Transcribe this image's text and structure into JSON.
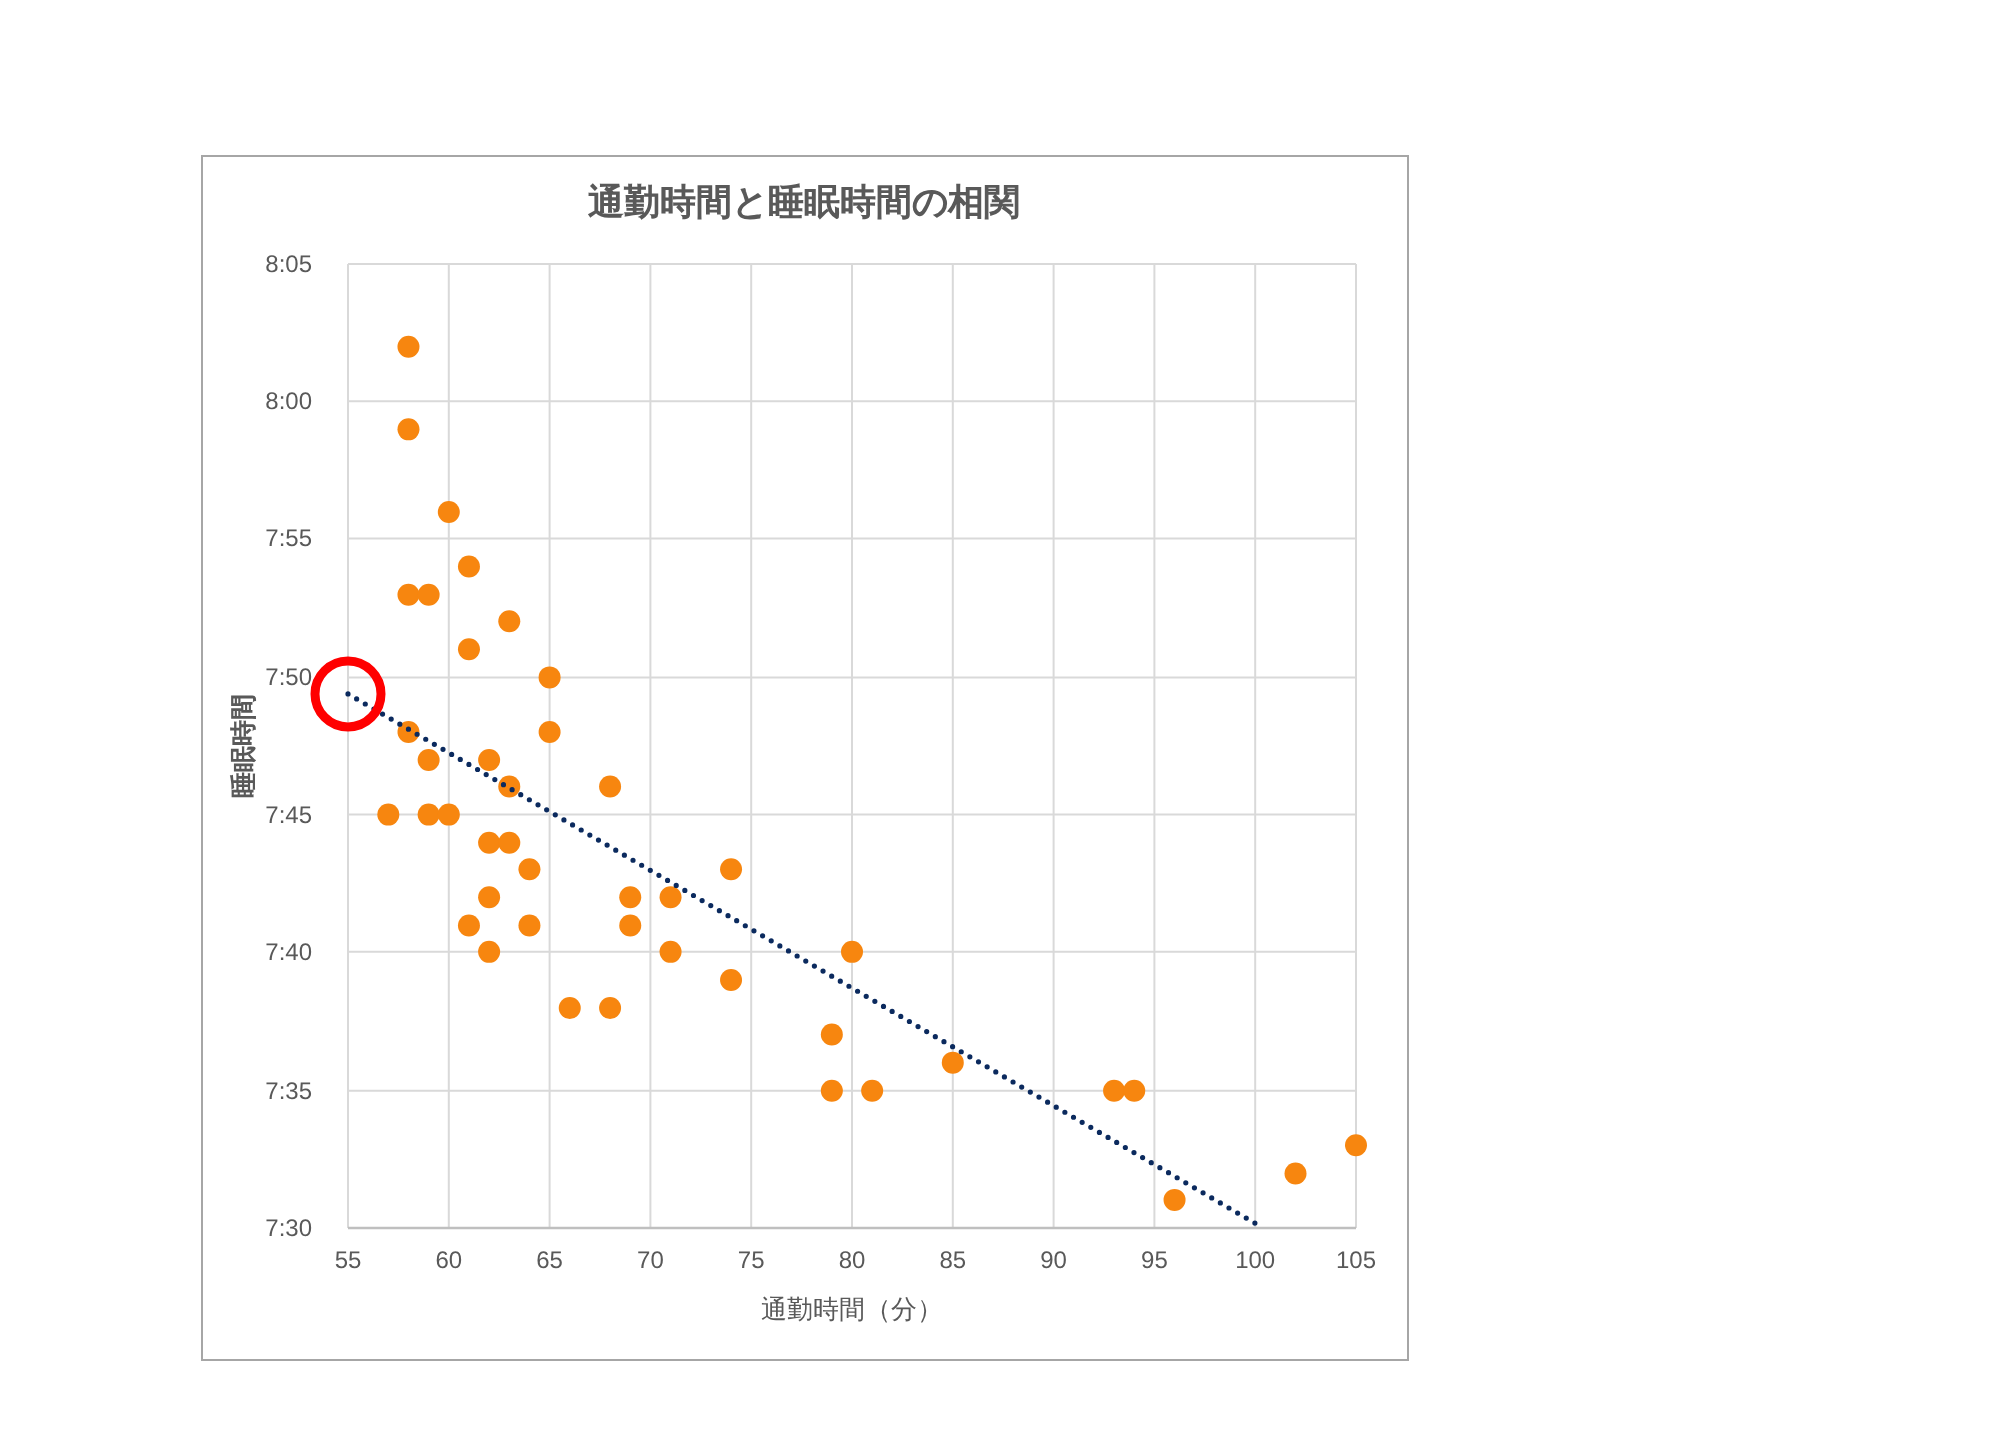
{
  "chart_data": {
    "type": "scatter",
    "title": "通勤時間と睡眠時間の相関",
    "xlabel": "通勤時間（分）",
    "ylabel": "睡眠時間",
    "xlim": [
      55,
      105
    ],
    "xticks": [
      55,
      60,
      65,
      70,
      75,
      80,
      85,
      90,
      95,
      100,
      105
    ],
    "ylim": [
      7.5,
      8.083
    ],
    "yticks": [
      {
        "value": 7.5,
        "label": "7:30"
      },
      {
        "value": 7.583,
        "label": "7:35"
      },
      {
        "value": 7.667,
        "label": "7:40"
      },
      {
        "value": 7.75,
        "label": "7:45"
      },
      {
        "value": 7.833,
        "label": "7:50"
      },
      {
        "value": 7.917,
        "label": "7:55"
      },
      {
        "value": 8.0,
        "label": "8:00"
      },
      {
        "value": 8.083,
        "label": "8:05"
      }
    ],
    "grid": true,
    "marker": "circle",
    "series": [
      {
        "type": "scatter",
        "color": "#f7860f",
        "x": [
          57,
          58,
          58,
          58,
          58,
          59,
          59,
          59,
          60,
          60,
          61,
          61,
          61,
          62,
          62,
          62,
          62,
          63,
          63,
          63,
          64,
          64,
          65,
          65,
          66,
          68,
          68,
          69,
          69,
          71,
          71,
          74,
          74,
          79,
          79,
          80,
          81,
          85,
          93,
          94,
          96,
          102,
          105
        ],
        "values": [
          7.75,
          8.033,
          7.983,
          7.883,
          7.8,
          7.883,
          7.783,
          7.75,
          7.933,
          7.75,
          7.9,
          7.85,
          7.683,
          7.783,
          7.733,
          7.7,
          7.667,
          7.867,
          7.767,
          7.733,
          7.717,
          7.683,
          7.833,
          7.8,
          7.633,
          7.767,
          7.633,
          7.7,
          7.683,
          7.7,
          7.667,
          7.717,
          7.65,
          7.617,
          7.583,
          7.667,
          7.583,
          7.6,
          7.583,
          7.583,
          7.517,
          7.533,
          7.55
        ]
      },
      {
        "type": "line",
        "color": "#0b2a5e",
        "line_style": "dotted",
        "x": [
          55,
          100.4
        ],
        "values": [
          7.823,
          7.5
        ]
      }
    ]
  }
}
